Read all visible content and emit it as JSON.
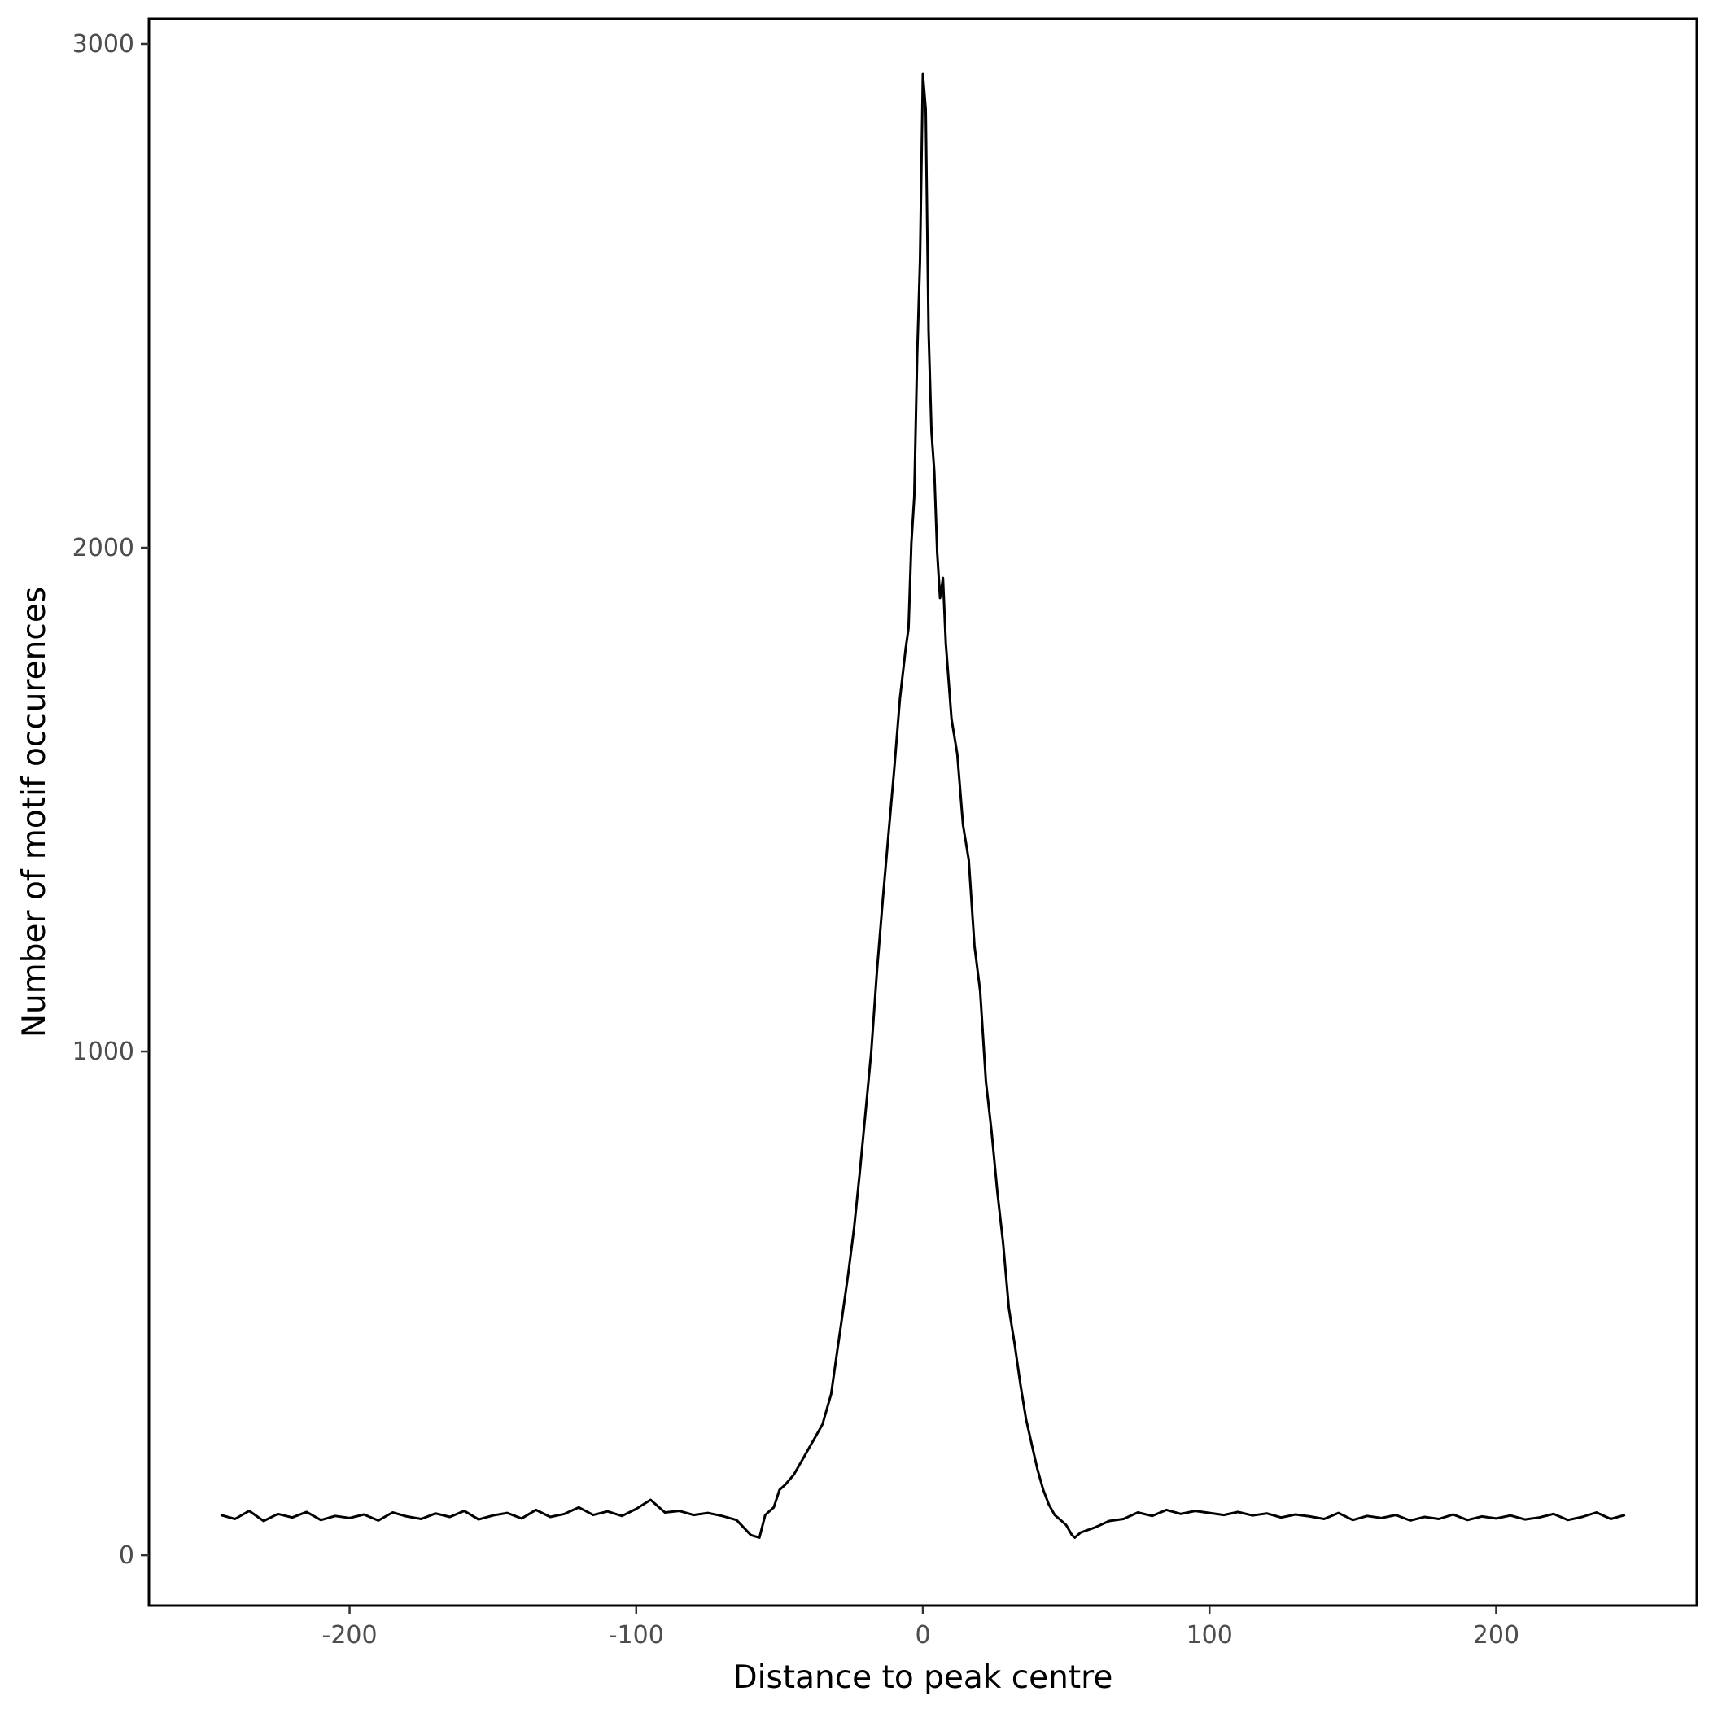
{
  "chart_data": {
    "type": "line",
    "title": "",
    "xlabel": "Distance to peak centre",
    "ylabel": "Number of motif occurences",
    "xlim": [
      -270,
      270
    ],
    "ylim": [
      -100,
      3050
    ],
    "xticks": [
      -200,
      -100,
      0,
      100,
      200
    ],
    "xtick_labels": [
      "-200",
      "-100",
      "0",
      "100",
      "200"
    ],
    "yticks": [
      0,
      1000,
      2000,
      3000
    ],
    "ytick_labels": [
      "0",
      "1000",
      "2000",
      "3000"
    ],
    "grid": false,
    "legend": "none",
    "line_color": "#000000",
    "series": [
      {
        "x": [
          -245,
          -240,
          -235,
          -230,
          -225,
          -220,
          -215,
          -210,
          -205,
          -200,
          -195,
          -190,
          -185,
          -180,
          -175,
          -170,
          -165,
          -160,
          -155,
          -150,
          -145,
          -140,
          -135,
          -130,
          -125,
          -120,
          -115,
          -110,
          -105,
          -100,
          -95,
          -90,
          -85,
          -80,
          -75,
          -70,
          -65,
          -60,
          -57,
          -55,
          -52,
          -50,
          -48,
          -45,
          -42,
          -40,
          -38,
          -35,
          -32,
          -30,
          -28,
          -26,
          -24,
          -22,
          -20,
          -18,
          -16,
          -14,
          -12,
          -10,
          -8,
          -6,
          -5,
          -4,
          -3,
          -2,
          -1,
          0,
          1,
          2,
          3,
          4,
          5,
          6,
          7,
          8,
          10,
          12,
          14,
          16,
          18,
          20,
          22,
          24,
          26,
          28,
          30,
          32,
          34,
          36,
          38,
          40,
          42,
          44,
          46,
          48,
          50,
          52,
          53,
          55,
          60,
          65,
          70,
          75,
          80,
          85,
          90,
          95,
          100,
          105,
          110,
          115,
          120,
          125,
          130,
          135,
          140,
          145,
          150,
          155,
          160,
          165,
          170,
          175,
          180,
          185,
          190,
          195,
          200,
          205,
          210,
          215,
          220,
          225,
          230,
          235,
          240,
          245
        ],
        "values": [
          80,
          72,
          88,
          68,
          82,
          75,
          86,
          70,
          78,
          74,
          81,
          69,
          85,
          77,
          72,
          83,
          76,
          88,
          71,
          79,
          84,
          73,
          90,
          76,
          82,
          95,
          80,
          87,
          78,
          92,
          110,
          85,
          88,
          80,
          84,
          78,
          70,
          40,
          35,
          80,
          95,
          130,
          140,
          160,
          190,
          210,
          230,
          260,
          320,
          400,
          480,
          560,
          650,
          760,
          880,
          1000,
          1160,
          1300,
          1430,
          1560,
          1700,
          1800,
          1840,
          2010,
          2100,
          2380,
          2570,
          2940,
          2870,
          2430,
          2230,
          2150,
          1990,
          1900,
          1940,
          1810,
          1660,
          1590,
          1450,
          1380,
          1210,
          1120,
          940,
          840,
          720,
          620,
          490,
          420,
          340,
          270,
          220,
          170,
          130,
          100,
          80,
          70,
          60,
          40,
          35,
          45,
          55,
          68,
          72,
          85,
          78,
          90,
          82,
          88,
          84,
          80,
          86,
          79,
          83,
          75,
          81,
          77,
          72,
          84,
          70,
          78,
          74,
          80,
          69,
          76,
          72,
          81,
          70,
          77,
          73,
          79,
          71,
          75,
          82,
          70,
          76,
          85,
          72,
          80
        ]
      }
    ]
  }
}
